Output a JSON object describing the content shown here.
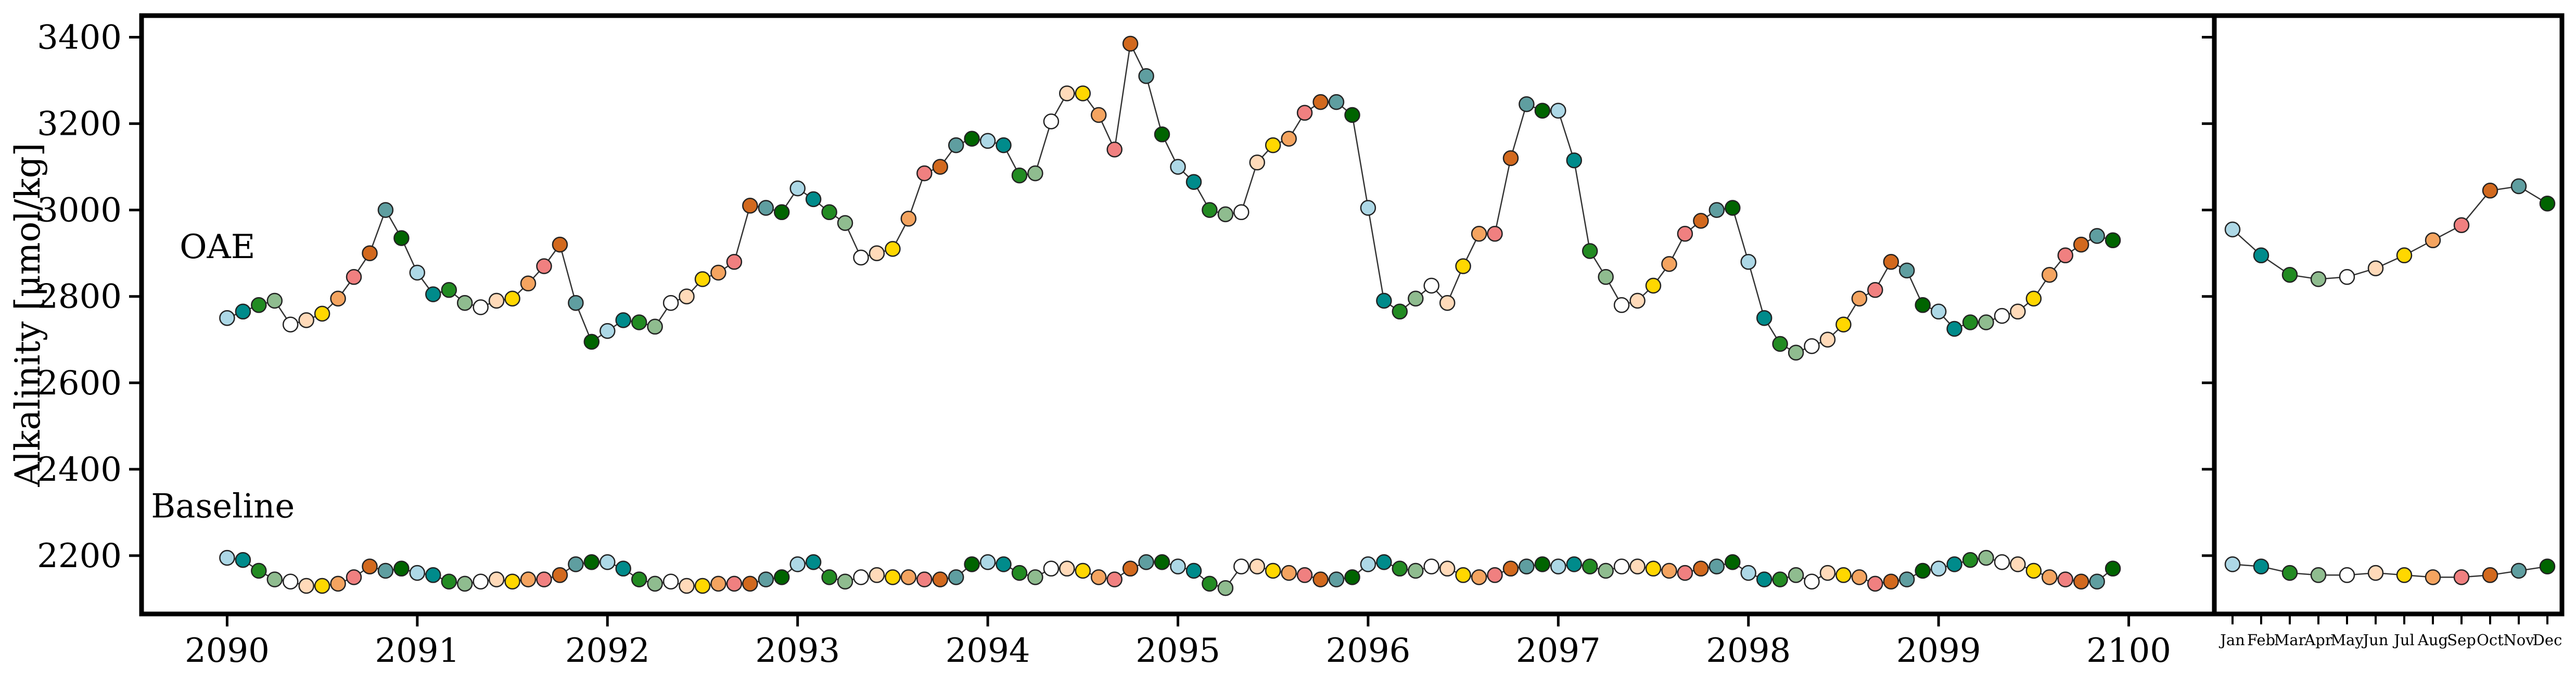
{
  "chart_data": [
    {
      "type": "line",
      "panel": "monthly time series 2090-2100",
      "xlabel": "",
      "ylabel": "Alkalinity [μmol/kg]",
      "xlim": [
        2089.55,
        2100.45
      ],
      "ylim": [
        2065,
        3450
      ],
      "x_ticks": [
        "2090",
        "2091",
        "2092",
        "2093",
        "2094",
        "2095",
        "2096",
        "2097",
        "2098",
        "2099",
        "2100"
      ],
      "y_ticks": [
        "2200",
        "2400",
        "2600",
        "2800",
        "3000",
        "3200",
        "3400"
      ],
      "x_start": 2090,
      "x_step_years": 0.0833333,
      "month_colors": [
        "#add8e6",
        "#008b8b",
        "#228b22",
        "#8fbc8f",
        "#ffffff",
        "#ffdab9",
        "#ffd700",
        "#f4a460",
        "#f08080",
        "#d2691e",
        "#5f9ea0",
        "#006400"
      ],
      "series": [
        {
          "name": "OAE",
          "values": [
            2750,
            2765,
            2780,
            2790,
            2735,
            2745,
            2760,
            2795,
            2845,
            2900,
            3000,
            2935,
            2855,
            2805,
            2815,
            2785,
            2775,
            2790,
            2795,
            2830,
            2870,
            2920,
            2785,
            2695,
            2720,
            2745,
            2740,
            2730,
            2785,
            2800,
            2840,
            2855,
            2880,
            3010,
            3005,
            2995,
            3050,
            3025,
            2995,
            2970,
            2890,
            2900,
            2910,
            2980,
            3085,
            3100,
            3150,
            3165,
            3160,
            3150,
            3080,
            3085,
            3205,
            3270,
            3270,
            3220,
            3140,
            3385,
            3310,
            3175,
            3100,
            3065,
            3000,
            2990,
            2995,
            3110,
            3150,
            3165,
            3225,
            3250,
            3250,
            3220,
            3005,
            2790,
            2765,
            2795,
            2825,
            2785,
            2870,
            2945,
            2945,
            3120,
            3245,
            3230,
            3230,
            3115,
            2905,
            2845,
            2780,
            2790,
            2825,
            2875,
            2945,
            2975,
            3000,
            3005,
            2880,
            2750,
            2690,
            2670,
            2685,
            2700,
            2735,
            2795,
            2815,
            2880,
            2860,
            2780,
            2765,
            2725,
            2740,
            2740,
            2755,
            2765,
            2795,
            2850,
            2895,
            2920,
            2940,
            2930
          ]
        },
        {
          "name": "Baseline",
          "values": [
            2195,
            2190,
            2165,
            2145,
            2140,
            2130,
            2130,
            2135,
            2150,
            2175,
            2165,
            2170,
            2160,
            2155,
            2140,
            2135,
            2140,
            2145,
            2140,
            2145,
            2145,
            2155,
            2180,
            2185,
            2185,
            2170,
            2145,
            2135,
            2140,
            2130,
            2130,
            2135,
            2135,
            2135,
            2145,
            2150,
            2180,
            2185,
            2150,
            2140,
            2150,
            2155,
            2150,
            2150,
            2145,
            2145,
            2150,
            2180,
            2185,
            2180,
            2160,
            2150,
            2170,
            2170,
            2165,
            2150,
            2145,
            2170,
            2185,
            2185,
            2175,
            2165,
            2135,
            2125,
            2175,
            2175,
            2165,
            2160,
            2155,
            2145,
            2145,
            2150,
            2180,
            2185,
            2170,
            2165,
            2175,
            2170,
            2155,
            2150,
            2155,
            2170,
            2175,
            2180,
            2175,
            2180,
            2175,
            2165,
            2175,
            2175,
            2170,
            2165,
            2160,
            2170,
            2175,
            2185,
            2160,
            2145,
            2145,
            2155,
            2140,
            2160,
            2155,
            2150,
            2135,
            2140,
            2145,
            2165,
            2170,
            2180,
            2190,
            2195,
            2185,
            2180,
            2165,
            2150,
            2145,
            2140,
            2140,
            2170
          ]
        }
      ],
      "series_label_y": {
        "OAE": 2915,
        "Baseline": 2315
      },
      "series_label_x": {
        "OAE": 2089.75,
        "Baseline": 2089.6
      }
    },
    {
      "type": "line",
      "panel": "monthly climatology",
      "xlabel": "",
      "ylabel": "",
      "ylim": [
        2065,
        3450
      ],
      "categories": [
        "Jan",
        "Feb",
        "Mar",
        "Apr",
        "May",
        "Jun",
        "Jul",
        "Aug",
        "Sep",
        "Oct",
        "Nov",
        "Dec"
      ],
      "series": [
        {
          "name": "OAE",
          "values": [
            2955,
            2895,
            2850,
            2840,
            2845,
            2865,
            2895,
            2930,
            2965,
            3045,
            3055,
            3015
          ]
        },
        {
          "name": "Baseline",
          "values": [
            2180,
            2175,
            2160,
            2155,
            2155,
            2160,
            2155,
            2150,
            2150,
            2155,
            2165,
            2175
          ]
        }
      ]
    }
  ]
}
